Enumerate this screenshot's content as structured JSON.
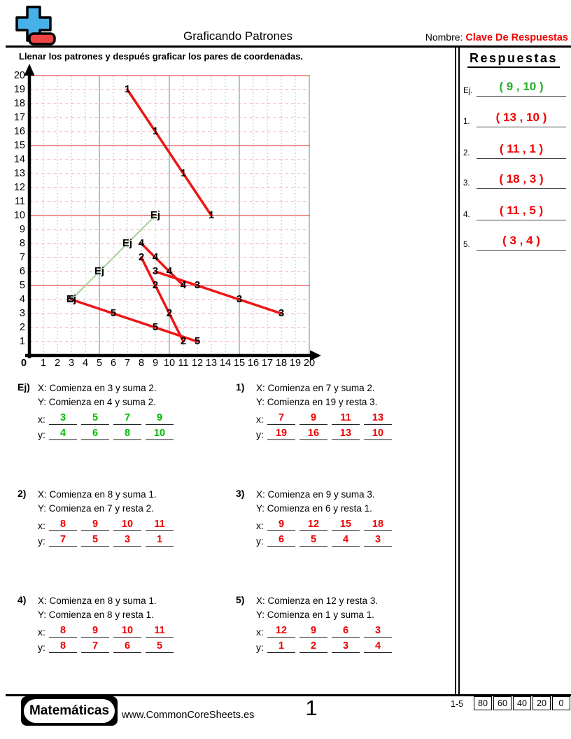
{
  "header": {
    "title": "Graficando Patrones",
    "name_label": "Nombre:",
    "name_value": "Clave De Respuestas",
    "name_value_color": "#f20000",
    "logo": {
      "plus_color": "#45b1e8",
      "minus_color": "#ef4445"
    }
  },
  "instruction": "Llenar los patrones y después graficar los pares de coordenadas.",
  "answers": {
    "heading": "Respuestas",
    "items": [
      {
        "label": "Ej.",
        "value": "( 9 , 10 )",
        "color": "#28b028"
      },
      {
        "label": "1.",
        "value": "( 13 , 10 )",
        "color": "#f20000"
      },
      {
        "label": "2.",
        "value": "( 11 , 1 )",
        "color": "#f20000"
      },
      {
        "label": "3.",
        "value": "( 18 , 3 )",
        "color": "#f20000"
      },
      {
        "label": "4.",
        "value": "( 11 , 5 )",
        "color": "#f20000"
      },
      {
        "label": "5.",
        "value": "( 3 , 4 )",
        "color": "#f20000"
      }
    ]
  },
  "graph": {
    "x_min": 0,
    "x_max": 20,
    "y_min": 0,
    "y_max": 20,
    "major_every": 5,
    "colors": {
      "axis": "#000000",
      "major_h": "#e8554e",
      "minor_h": "#f6b8bf",
      "major_v": "#a5cbca",
      "minor_v": "#b8d4ef"
    },
    "series": [
      {
        "label": "Ej",
        "color": "#a9cf9b",
        "width": 2,
        "points": [
          [
            3,
            4
          ],
          [
            5,
            6
          ],
          [
            7,
            8
          ],
          [
            9,
            10
          ]
        ]
      },
      {
        "label": "1",
        "color": "#ed1515",
        "width": 3.5,
        "points": [
          [
            7,
            19
          ],
          [
            9,
            16
          ],
          [
            11,
            13
          ],
          [
            13,
            10
          ]
        ]
      },
      {
        "label": "2",
        "color": "#ed1515",
        "width": 3.5,
        "points": [
          [
            8,
            7
          ],
          [
            9,
            5
          ],
          [
            10,
            3
          ],
          [
            11,
            1
          ]
        ]
      },
      {
        "label": "3",
        "color": "#ed1515",
        "width": 3.5,
        "points": [
          [
            9,
            6
          ],
          [
            12,
            5
          ],
          [
            15,
            4
          ],
          [
            18,
            3
          ]
        ]
      },
      {
        "label": "4",
        "color": "#ed1515",
        "width": 3.5,
        "points": [
          [
            8,
            8
          ],
          [
            9,
            7
          ],
          [
            10,
            6
          ],
          [
            11,
            5
          ]
        ]
      },
      {
        "label": "5",
        "color": "#ed1515",
        "width": 3.5,
        "points": [
          [
            12,
            1
          ],
          [
            9,
            2
          ],
          [
            6,
            3
          ],
          [
            3,
            4
          ]
        ]
      }
    ]
  },
  "chart_data": {
    "type": "line",
    "title": "",
    "xlabel": "",
    "ylabel": "",
    "xlim": [
      0,
      20
    ],
    "ylim": [
      0,
      20
    ],
    "grid": true,
    "series": [
      {
        "name": "Ej",
        "x": [
          3,
          5,
          7,
          9
        ],
        "y": [
          4,
          6,
          8,
          10
        ]
      },
      {
        "name": "1",
        "x": [
          7,
          9,
          11,
          13
        ],
        "y": [
          19,
          16,
          13,
          10
        ]
      },
      {
        "name": "2",
        "x": [
          8,
          9,
          10,
          11
        ],
        "y": [
          7,
          5,
          3,
          1
        ]
      },
      {
        "name": "3",
        "x": [
          9,
          12,
          15,
          18
        ],
        "y": [
          6,
          5,
          4,
          3
        ]
      },
      {
        "name": "4",
        "x": [
          8,
          9,
          10,
          11
        ],
        "y": [
          8,
          7,
          6,
          5
        ]
      },
      {
        "name": "5",
        "x": [
          12,
          9,
          6,
          3
        ],
        "y": [
          1,
          2,
          3,
          4
        ]
      }
    ]
  },
  "problems": [
    {
      "number": "Ej)",
      "line1": "X: Comienza en 3 y suma 2.",
      "line2": "Y: Comienza en 4 y suma 2.",
      "x_label": "x:",
      "y_label": "y:",
      "x_values": [
        "3",
        "5",
        "7",
        "9"
      ],
      "y_values": [
        "4",
        "6",
        "8",
        "10"
      ],
      "value_color": "#00bb00"
    },
    {
      "number": "1)",
      "line1": "X: Comienza en 7 y suma 2.",
      "line2": "Y: Comienza en 19 y resta 3.",
      "x_label": "x:",
      "y_label": "y:",
      "x_values": [
        "7",
        "9",
        "11",
        "13"
      ],
      "y_values": [
        "19",
        "16",
        "13",
        "10"
      ],
      "value_color": "#ee0000"
    },
    {
      "number": "2)",
      "line1": "X: Comienza en 8 y suma 1.",
      "line2": "Y: Comienza en 7 y resta 2.",
      "x_label": "x:",
      "y_label": "y:",
      "x_values": [
        "8",
        "9",
        "10",
        "11"
      ],
      "y_values": [
        "7",
        "5",
        "3",
        "1"
      ],
      "value_color": "#ee0000"
    },
    {
      "number": "3)",
      "line1": "X: Comienza en 9 y suma 3.",
      "line2": "Y: Comienza en 6 y resta 1.",
      "x_label": "x:",
      "y_label": "y:",
      "x_values": [
        "9",
        "12",
        "15",
        "18"
      ],
      "y_values": [
        "6",
        "5",
        "4",
        "3"
      ],
      "value_color": "#ee0000"
    },
    {
      "number": "4)",
      "line1": "X: Comienza en 8 y suma 1.",
      "line2": "Y: Comienza en 8 y resta 1.",
      "x_label": "x:",
      "y_label": "y:",
      "x_values": [
        "8",
        "9",
        "10",
        "11"
      ],
      "y_values": [
        "8",
        "7",
        "6",
        "5"
      ],
      "value_color": "#ee0000"
    },
    {
      "number": "5)",
      "line1": "X: Comienza en 12 y resta 3.",
      "line2": "Y: Comienza en 1 y suma 1.",
      "x_label": "x:",
      "y_label": "y:",
      "x_values": [
        "12",
        "9",
        "6",
        "3"
      ],
      "y_values": [
        "1",
        "2",
        "3",
        "4"
      ],
      "value_color": "#ee0000"
    }
  ],
  "footer": {
    "brand": "Matemáticas",
    "website": "www.CommonCoreSheets.es",
    "page": "1",
    "score_label": "1-5",
    "score_cells": [
      "80",
      "60",
      "40",
      "20",
      "0"
    ]
  }
}
